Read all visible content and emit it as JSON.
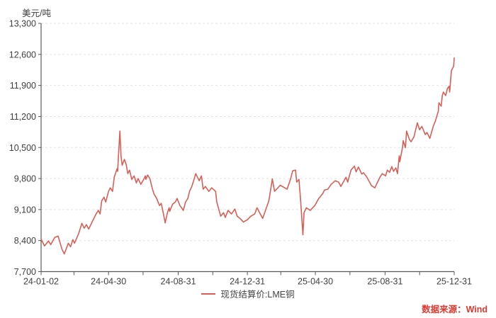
{
  "chart": {
    "y_axis_title": "美元/吨",
    "legend_label": "现货结算价:LME铜",
    "source_label": "数据来源：Wind"
  },
  "colors": {
    "line": "#d85f57",
    "grid": "#e2e2e2",
    "axis": "#595959",
    "tick_label": "#404040",
    "source_text": "#e0382e"
  },
  "chart_data": {
    "type": "line",
    "title": "",
    "xlabel": "",
    "ylabel": "美元/吨",
    "ylim": [
      7700,
      13300
    ],
    "y_tick_step": 700,
    "grid": "horizontal-dashed",
    "legend_position": "bottom-center",
    "x_range": [
      "2024-01-02",
      "2025-12-31"
    ],
    "x_major_ticks": [
      {
        "date": "2024-01-02",
        "label": "24-01-02"
      },
      {
        "date": "2024-04-30",
        "label": "24-04-30"
      },
      {
        "date": "2024-08-31",
        "label": "24-08-31"
      },
      {
        "date": "2024-12-31",
        "label": "24-12-31"
      },
      {
        "date": "2025-04-30",
        "label": "25-04-30"
      },
      {
        "date": "2025-08-31",
        "label": "25-08-31"
      },
      {
        "date": "2025-12-31",
        "label": "25-12-31"
      }
    ],
    "x_minor_ticks": [
      "2024-02-29",
      "2024-06-30",
      "2024-10-31",
      "2025-02-28",
      "2025-06-30",
      "2025-10-31"
    ],
    "series": [
      {
        "name": "现货结算价:LME铜",
        "color": "#d85f57",
        "points": [
          [
            "2024-01-02",
            8430
          ],
          [
            "2024-01-08",
            8280
          ],
          [
            "2024-01-15",
            8390
          ],
          [
            "2024-01-19",
            8310
          ],
          [
            "2024-01-26",
            8470
          ],
          [
            "2024-02-01",
            8500
          ],
          [
            "2024-02-08",
            8200
          ],
          [
            "2024-02-12",
            8100
          ],
          [
            "2024-02-19",
            8340
          ],
          [
            "2024-02-23",
            8260
          ],
          [
            "2024-02-27",
            8420
          ],
          [
            "2024-03-01",
            8340
          ],
          [
            "2024-03-08",
            8550
          ],
          [
            "2024-03-14",
            8790
          ],
          [
            "2024-03-18",
            8680
          ],
          [
            "2024-03-22",
            8760
          ],
          [
            "2024-03-26",
            8660
          ],
          [
            "2024-04-01",
            8820
          ],
          [
            "2024-04-08",
            9000
          ],
          [
            "2024-04-12",
            9080
          ],
          [
            "2024-04-15",
            9000
          ],
          [
            "2024-04-18",
            9300
          ],
          [
            "2024-04-22",
            9380
          ],
          [
            "2024-04-25",
            9270
          ],
          [
            "2024-04-30",
            9510
          ],
          [
            "2024-05-03",
            9590
          ],
          [
            "2024-05-07",
            9510
          ],
          [
            "2024-05-10",
            9830
          ],
          [
            "2024-05-15",
            10020
          ],
          [
            "2024-05-16",
            9960
          ],
          [
            "2024-05-20",
            10870
          ],
          [
            "2024-05-22",
            10310
          ],
          [
            "2024-05-24",
            10100
          ],
          [
            "2024-05-28",
            10230
          ],
          [
            "2024-05-31",
            10120
          ],
          [
            "2024-06-03",
            9910
          ],
          [
            "2024-06-06",
            9990
          ],
          [
            "2024-06-10",
            9780
          ],
          [
            "2024-06-14",
            9860
          ],
          [
            "2024-06-18",
            9700
          ],
          [
            "2024-06-21",
            9800
          ],
          [
            "2024-06-26",
            9670
          ],
          [
            "2024-07-01",
            9780
          ],
          [
            "2024-07-04",
            9860
          ],
          [
            "2024-07-05",
            9780
          ],
          [
            "2024-07-08",
            9880
          ],
          [
            "2024-07-12",
            9800
          ],
          [
            "2024-07-16",
            9590
          ],
          [
            "2024-07-19",
            9460
          ],
          [
            "2024-07-24",
            9350
          ],
          [
            "2024-07-29",
            9190
          ],
          [
            "2024-08-01",
            9240
          ],
          [
            "2024-08-05",
            9000
          ],
          [
            "2024-08-08",
            8800
          ],
          [
            "2024-08-12",
            9030
          ],
          [
            "2024-08-15",
            9140
          ],
          [
            "2024-08-16",
            9060
          ],
          [
            "2024-08-21",
            9220
          ],
          [
            "2024-08-26",
            9270
          ],
          [
            "2024-08-29",
            9350
          ],
          [
            "2024-09-03",
            9190
          ],
          [
            "2024-09-06",
            9140
          ],
          [
            "2024-09-09",
            9080
          ],
          [
            "2024-09-13",
            9270
          ],
          [
            "2024-09-17",
            9350
          ],
          [
            "2024-09-20",
            9510
          ],
          [
            "2024-09-24",
            9620
          ],
          [
            "2024-10-01",
            9910
          ],
          [
            "2024-10-07",
            9750
          ],
          [
            "2024-10-11",
            9860
          ],
          [
            "2024-10-14",
            9560
          ],
          [
            "2024-10-18",
            9620
          ],
          [
            "2024-10-24",
            9510
          ],
          [
            "2024-10-29",
            9590
          ],
          [
            "2024-11-05",
            9510
          ],
          [
            "2024-11-07",
            9270
          ],
          [
            "2024-11-14",
            8950
          ],
          [
            "2024-11-19",
            9030
          ],
          [
            "2024-11-22",
            8920
          ],
          [
            "2024-11-27",
            9080
          ],
          [
            "2024-12-03",
            9000
          ],
          [
            "2024-12-09",
            9110
          ],
          [
            "2024-12-13",
            8950
          ],
          [
            "2024-12-18",
            8900
          ],
          [
            "2024-12-24",
            8820
          ],
          [
            "2024-12-31",
            8870
          ],
          [
            "2025-01-06",
            8950
          ],
          [
            "2025-01-13",
            9000
          ],
          [
            "2025-01-17",
            9140
          ],
          [
            "2025-01-27",
            8900
          ],
          [
            "2025-02-07",
            9300
          ],
          [
            "2025-02-13",
            9790
          ],
          [
            "2025-02-17",
            9510
          ],
          [
            "2025-02-27",
            9650
          ],
          [
            "2025-03-11",
            9560
          ],
          [
            "2025-03-17",
            9780
          ],
          [
            "2025-03-21",
            9975
          ],
          [
            "2025-03-26",
            9990
          ],
          [
            "2025-03-28",
            9720
          ],
          [
            "2025-04-01",
            9780
          ],
          [
            "2025-04-04",
            9300
          ],
          [
            "2025-04-08",
            8530
          ],
          [
            "2025-04-10",
            9030
          ],
          [
            "2025-04-14",
            9140
          ],
          [
            "2025-04-21",
            9080
          ],
          [
            "2025-04-29",
            9190
          ],
          [
            "2025-05-06",
            9350
          ],
          [
            "2025-05-13",
            9460
          ],
          [
            "2025-05-16",
            9540
          ],
          [
            "2025-05-22",
            9560
          ],
          [
            "2025-05-28",
            9670
          ],
          [
            "2025-06-04",
            9750
          ],
          [
            "2025-06-10",
            9720
          ],
          [
            "2025-06-14",
            9620
          ],
          [
            "2025-06-23",
            9830
          ],
          [
            "2025-06-26",
            9720
          ],
          [
            "2025-07-02",
            9990
          ],
          [
            "2025-07-08",
            10080
          ],
          [
            "2025-07-11",
            9950
          ],
          [
            "2025-07-15",
            10060
          ],
          [
            "2025-07-21",
            9900
          ],
          [
            "2025-07-24",
            9930
          ],
          [
            "2025-07-30",
            9830
          ],
          [
            "2025-08-07",
            9640
          ],
          [
            "2025-08-13",
            9590
          ],
          [
            "2025-08-22",
            9830
          ],
          [
            "2025-08-26",
            9910
          ],
          [
            "2025-09-01",
            9860
          ],
          [
            "2025-09-04",
            9990
          ],
          [
            "2025-09-08",
            9940
          ],
          [
            "2025-09-12",
            10070
          ],
          [
            "2025-09-15",
            9960
          ],
          [
            "2025-09-19",
            10040
          ],
          [
            "2025-09-22",
            9910
          ],
          [
            "2025-09-25",
            10310
          ],
          [
            "2025-09-26",
            10180
          ],
          [
            "2025-10-01",
            10515
          ],
          [
            "2025-10-02",
            10655
          ],
          [
            "2025-10-06",
            10495
          ],
          [
            "2025-10-08",
            10870
          ],
          [
            "2025-10-13",
            10680
          ],
          [
            "2025-10-16",
            10630
          ],
          [
            "2025-10-21",
            10740
          ],
          [
            "2025-10-27",
            11055
          ],
          [
            "2025-10-31",
            10900
          ],
          [
            "2025-11-04",
            10975
          ],
          [
            "2025-11-10",
            10790
          ],
          [
            "2025-11-13",
            10840
          ],
          [
            "2025-11-18",
            10705
          ],
          [
            "2025-11-24",
            10975
          ],
          [
            "2025-11-28",
            11105
          ],
          [
            "2025-12-03",
            11320
          ],
          [
            "2025-12-04",
            11510
          ],
          [
            "2025-12-08",
            11430
          ],
          [
            "2025-12-10",
            11670
          ],
          [
            "2025-12-12",
            11750
          ],
          [
            "2025-12-16",
            11670
          ],
          [
            "2025-12-19",
            11830
          ],
          [
            "2025-12-22",
            11880
          ],
          [
            "2025-12-23",
            11750
          ],
          [
            "2025-12-26",
            12230
          ],
          [
            "2025-12-29",
            12310
          ],
          [
            "2025-12-30",
            12330
          ],
          [
            "2025-12-31",
            12520
          ]
        ]
      }
    ]
  }
}
